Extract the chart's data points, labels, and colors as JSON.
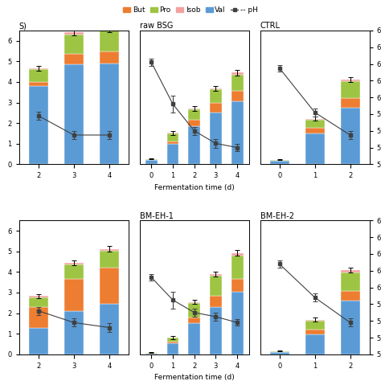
{
  "panels": [
    {
      "title": "S)",
      "days": [
        2,
        3,
        4
      ],
      "val": [
        3.8,
        4.85,
        4.9
      ],
      "but": [
        0.18,
        0.52,
        0.58
      ],
      "pro": [
        0.65,
        0.95,
        1.0
      ],
      "isob": [
        0.03,
        0.08,
        0.1
      ],
      "ph": [
        5.78,
        5.55,
        5.55
      ],
      "ph_err": [
        0.05,
        0.05,
        0.05
      ],
      "bar_err": [
        0.12,
        0.15,
        0.15
      ],
      "row": 0,
      "col": 0
    },
    {
      "title": "raw BSG",
      "days": [
        0,
        1,
        2,
        3,
        4
      ],
      "val": [
        0.22,
        1.0,
        1.85,
        2.5,
        3.05
      ],
      "but": [
        0.0,
        0.12,
        0.32,
        0.48,
        0.52
      ],
      "pro": [
        0.04,
        0.38,
        0.5,
        0.65,
        0.78
      ],
      "isob": [
        0.0,
        0.02,
        0.04,
        0.07,
        0.1
      ],
      "ph": [
        6.42,
        5.92,
        5.6,
        5.45,
        5.4
      ],
      "ph_err": [
        0.04,
        0.1,
        0.05,
        0.05,
        0.04
      ],
      "bar_err": [
        0.02,
        0.08,
        0.1,
        0.12,
        0.13
      ],
      "row": 0,
      "col": 1
    },
    {
      "title": "CTRL",
      "days": [
        0,
        1,
        2
      ],
      "val": [
        0.18,
        1.5,
        2.75
      ],
      "but": [
        0.0,
        0.28,
        0.45
      ],
      "pro": [
        0.04,
        0.4,
        0.85
      ],
      "isob": [
        0.0,
        0.03,
        0.08
      ],
      "ph": [
        6.35,
        5.82,
        5.55
      ],
      "ph_err": [
        0.04,
        0.05,
        0.05
      ],
      "bar_err": [
        0.02,
        0.1,
        0.12
      ],
      "row": 0,
      "col": 2
    },
    {
      "title": "",
      "days": [
        2,
        3,
        4
      ],
      "val": [
        1.3,
        2.1,
        2.45
      ],
      "but": [
        1.0,
        1.55,
        1.75
      ],
      "pro": [
        0.48,
        0.72,
        0.82
      ],
      "isob": [
        0.05,
        0.08,
        0.1
      ],
      "ph": [
        5.72,
        5.58,
        5.52
      ],
      "ph_err": [
        0.05,
        0.05,
        0.05
      ],
      "bar_err": [
        0.1,
        0.12,
        0.13
      ],
      "row": 1,
      "col": 0
    },
    {
      "title": "BM-EH-1",
      "days": [
        0,
        1,
        2,
        3,
        4
      ],
      "val": [
        0.05,
        0.55,
        1.5,
        2.3,
        3.05
      ],
      "but": [
        0.0,
        0.05,
        0.28,
        0.55,
        0.62
      ],
      "pro": [
        0.04,
        0.2,
        0.72,
        0.95,
        1.12
      ],
      "isob": [
        0.0,
        0.02,
        0.05,
        0.1,
        0.13
      ],
      "ph": [
        6.12,
        5.85,
        5.7,
        5.65,
        5.58
      ],
      "ph_err": [
        0.04,
        0.1,
        0.05,
        0.05,
        0.04
      ],
      "bar_err": [
        0.01,
        0.08,
        0.1,
        0.12,
        0.13
      ],
      "row": 1,
      "col": 1
    },
    {
      "title": "BM-EH-2",
      "days": [
        0,
        1,
        2
      ],
      "val": [
        0.12,
        0.98,
        2.6
      ],
      "but": [
        0.0,
        0.22,
        0.48
      ],
      "pro": [
        0.04,
        0.45,
        0.9
      ],
      "isob": [
        0.0,
        0.04,
        0.1
      ],
      "ph": [
        6.28,
        5.88,
        5.58
      ],
      "ph_err": [
        0.04,
        0.05,
        0.05
      ],
      "bar_err": [
        0.01,
        0.1,
        0.12
      ],
      "row": 1,
      "col": 2
    }
  ],
  "colors": {
    "val": "#5B9BD5",
    "but": "#ED7D31",
    "pro": "#9DC543",
    "isob": "#F4A0A0"
  },
  "ph_color": "#404040",
  "ph_ylim": [
    5.2,
    6.8
  ],
  "vfa_ylim": [
    0,
    6.5
  ],
  "bar_width": 0.55,
  "xlabel": "Fermentation time (d)",
  "legend_items": [
    "But",
    "Pro",
    "Isob",
    "Val",
    "pH"
  ]
}
